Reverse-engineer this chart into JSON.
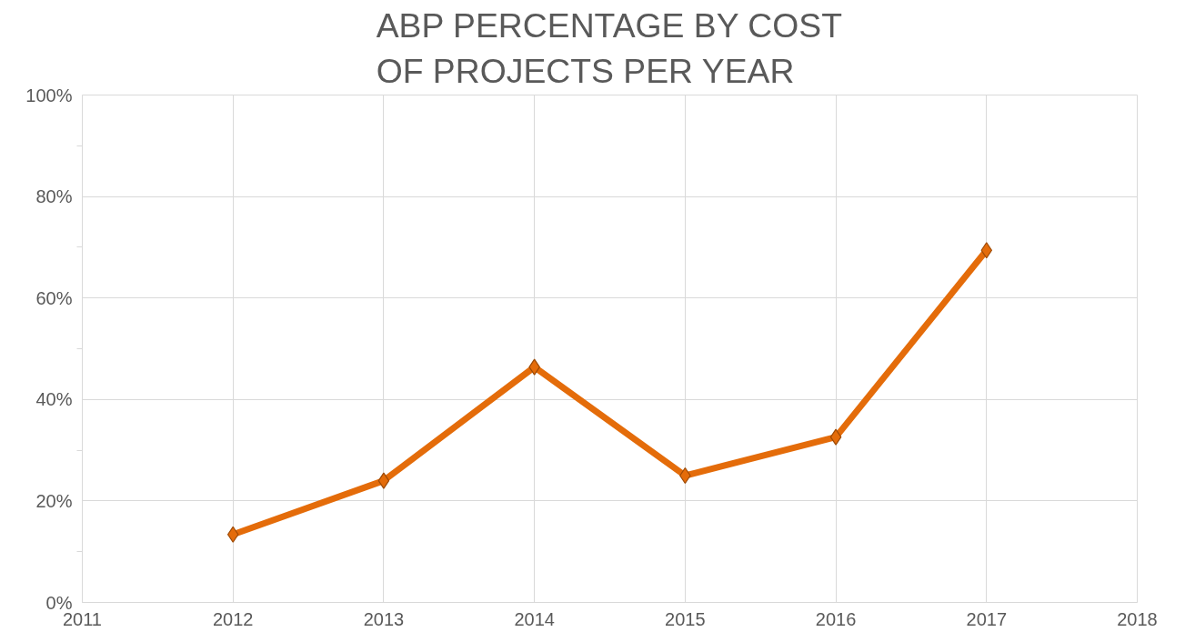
{
  "chart_data": {
    "type": "line",
    "title": "ABP PERCENTAGE BY COST OF PROJECTS PER YEAR",
    "x": [
      2012,
      2013,
      2014,
      2015,
      2016,
      2017
    ],
    "series": [
      {
        "color": "#e46c0a",
        "values": [
          13.4,
          24,
          46.4,
          25,
          32.6,
          69.4
        ]
      }
    ],
    "xlim": [
      2011,
      2018
    ],
    "xticks": [
      2011,
      2012,
      2013,
      2014,
      2015,
      2016,
      2017,
      2018
    ],
    "ylim": [
      0,
      100
    ],
    "yticks": [
      {
        "value": 0,
        "label": "0%"
      },
      {
        "value": 20,
        "label": "20%"
      },
      {
        "value": 40,
        "label": "40%"
      },
      {
        "value": 60,
        "label": "60%"
      },
      {
        "value": 80,
        "label": "80%"
      },
      {
        "value": 100,
        "label": "100%"
      }
    ],
    "grid": true,
    "marker": "diamond",
    "line_style": "solid"
  }
}
